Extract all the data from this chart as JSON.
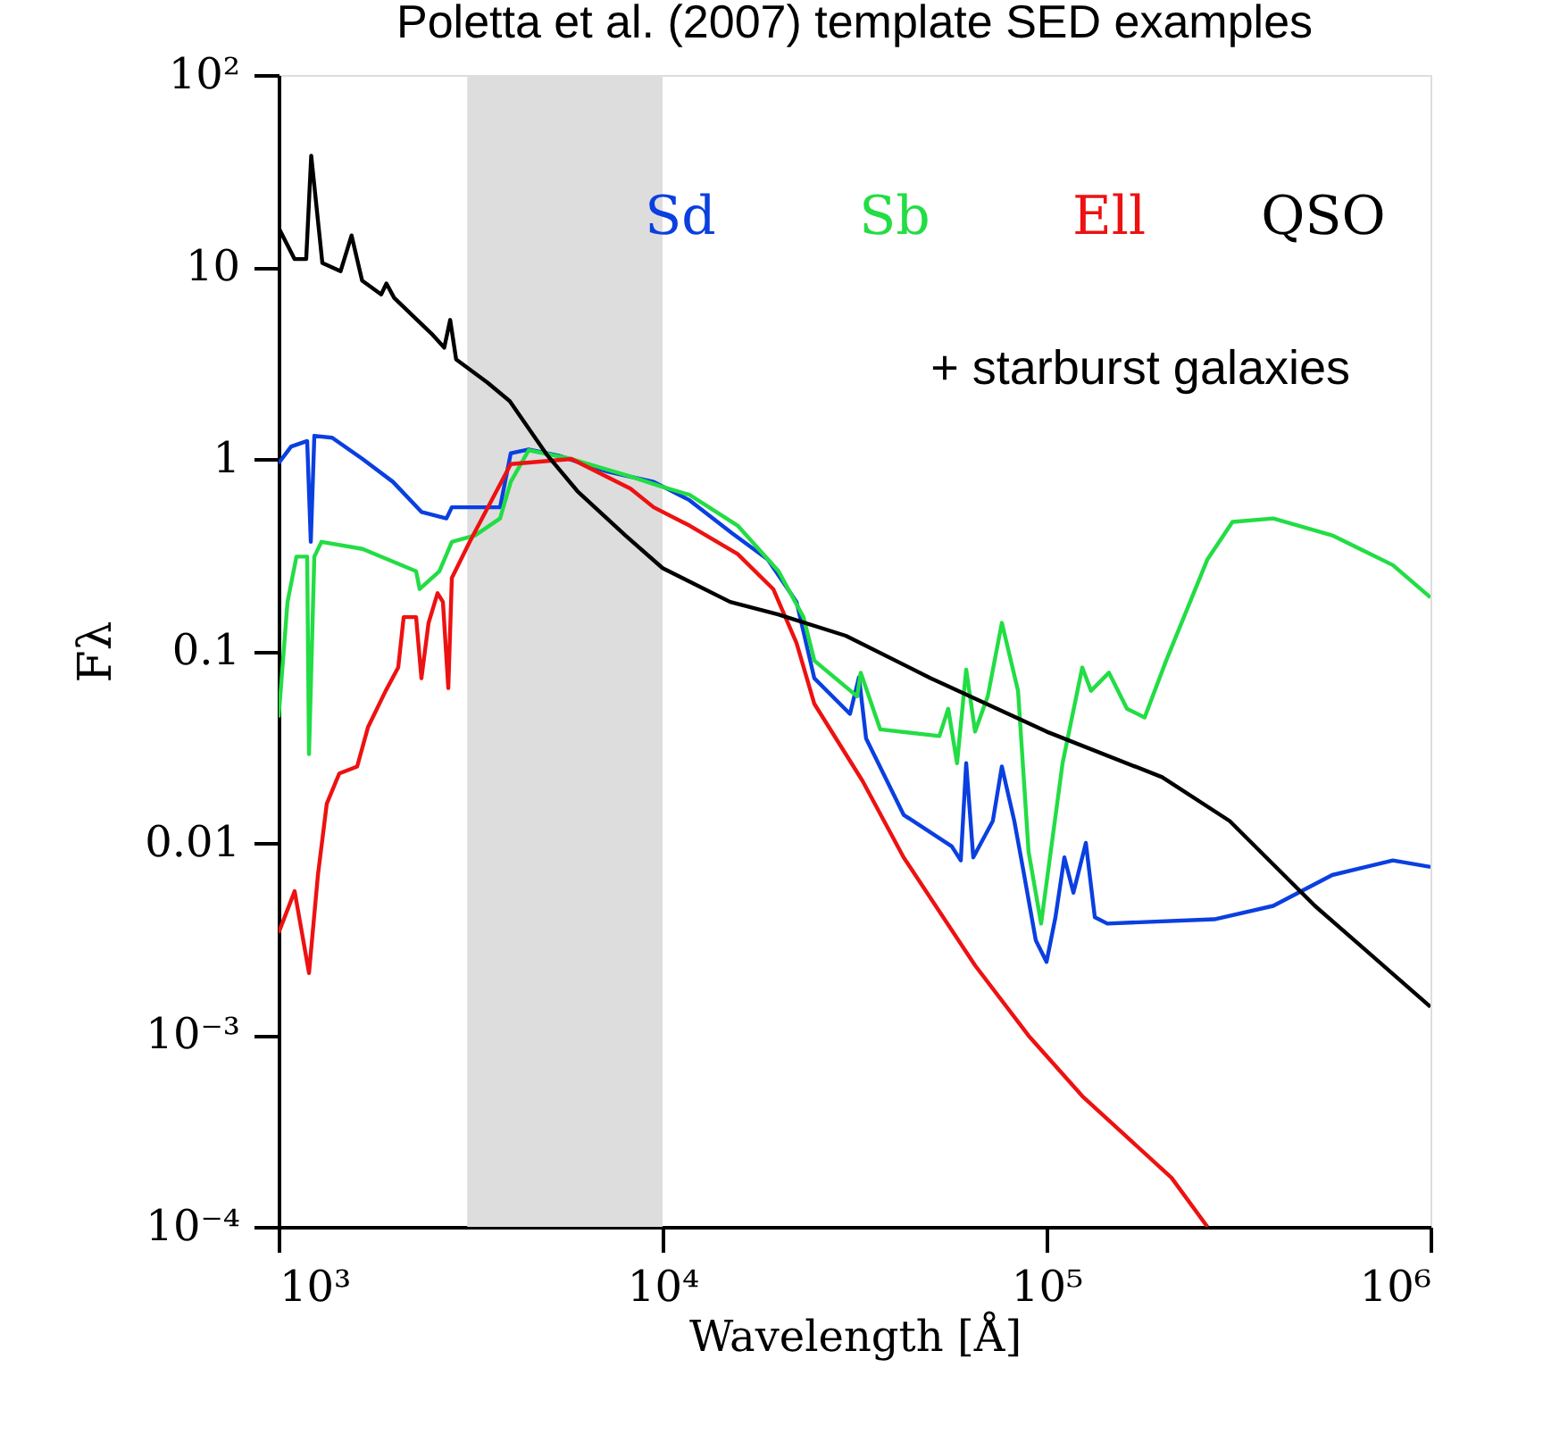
{
  "chart_data": {
    "type": "line",
    "title": "Poletta et al. (2007) template SED examples",
    "xlabel": "Wavelength [Å]",
    "ylabel": "Fλ",
    "log": "xy",
    "grid": false,
    "legend": "top right",
    "marker": "none",
    "line_style": "solid",
    "xlim": [
      1000,
      1000000
    ],
    "ylim": [
      0.0001,
      100
    ],
    "xticks": [
      {
        "value": 1000,
        "label": "10³"
      },
      {
        "value": 10000,
        "label": "10⁴"
      },
      {
        "value": 100000,
        "label": "10⁵"
      },
      {
        "value": 1000000,
        "label": "10⁶"
      }
    ],
    "yticks": [
      {
        "value": 0.0001,
        "label": "10⁻⁴"
      },
      {
        "value": 0.001,
        "label": "10⁻³"
      },
      0.01,
      0.1,
      1,
      10,
      {
        "value": 100,
        "label": "10²"
      }
    ],
    "bands": [
      {
        "axis": "x",
        "from": 3100,
        "to": 10000,
        "color": "#dddddd"
      }
    ],
    "annotations": [
      "+ starburst galaxies"
    ],
    "series": [
      {
        "name": "Sd",
        "color": "#0a3fe0",
        "x": [
          1000,
          1078,
          1187,
          1213,
          1239,
          1379,
          1654,
          1985,
          2355,
          2736,
          2826,
          3774,
          4024,
          4480,
          5370,
          7178,
          9480,
          11750,
          15180,
          18790,
          22330,
          24850,
          30770,
          32480,
          33890,
          42450,
          56650,
          59800,
          61770,
          64450,
          72460,
          76500,
          82440,
          87000,
          93800,
          100000,
          105500,
          111300,
          117500,
          126600,
          133600,
          144000,
          273500,
          389500,
          554600,
          798000,
          1000000
        ],
        "values": [
          0.95,
          1.16,
          1.24,
          0.37,
          1.32,
          1.29,
          1.0,
          0.76,
          0.53,
          0.49,
          0.56,
          0.56,
          1.07,
          1.12,
          1.04,
          0.86,
          0.76,
          0.61,
          0.41,
          0.3,
          0.18,
          0.072,
          0.047,
          0.073,
          0.035,
          0.014,
          0.0096,
          0.0081,
          0.026,
          0.0084,
          0.013,
          0.025,
          0.013,
          0.0072,
          0.0031,
          0.0024,
          0.0041,
          0.0084,
          0.0055,
          0.01,
          0.0041,
          0.0038,
          0.004,
          0.0047,
          0.0068,
          0.0081,
          0.0075
        ]
      },
      {
        "name": "Sb",
        "color": "#22dd44",
        "x": [
          1000,
          1055,
          1113,
          1187,
          1200,
          1239,
          1293,
          1654,
          2281,
          2330,
          2622,
          2826,
          3249,
          3774,
          4024,
          4480,
          5790,
          8250,
          9890,
          11750,
          15680,
          20050,
          23280,
          24850,
          32120,
          32820,
          36900,
          52600,
          55460,
          58480,
          61770,
          65160,
          70300,
          76500,
          84300,
          89800,
          96800,
          110100,
          123900,
          130600,
          145400,
          162000,
          180100,
          204900,
          262500,
          305000,
          389500,
          554600,
          798000,
          1000000
        ],
        "values": [
          0.045,
          0.18,
          0.31,
          0.31,
          0.029,
          0.31,
          0.37,
          0.34,
          0.26,
          0.21,
          0.26,
          0.37,
          0.4,
          0.49,
          0.76,
          1.11,
          1.0,
          0.81,
          0.72,
          0.65,
          0.45,
          0.26,
          0.15,
          0.089,
          0.058,
          0.077,
          0.039,
          0.036,
          0.05,
          0.026,
          0.08,
          0.038,
          0.058,
          0.14,
          0.062,
          0.009,
          0.0038,
          0.026,
          0.082,
          0.062,
          0.077,
          0.05,
          0.045,
          0.089,
          0.3,
          0.47,
          0.49,
          0.4,
          0.28,
          0.19
        ]
      },
      {
        "name": "Ell",
        "color": "#ee1111",
        "x": [
          1000,
          1101,
          1200,
          1266,
          1335,
          1439,
          1602,
          1709,
          1901,
          2049,
          2117,
          2281,
          2355,
          2458,
          2594,
          2679,
          2767,
          2826,
          3146,
          4024,
          5790,
          8250,
          9480,
          11750,
          15680,
          19420,
          22330,
          24850,
          33190,
          42450,
          65160,
          89800,
          123900,
          211700,
          262500
        ],
        "values": [
          0.0034,
          0.0056,
          0.0021,
          0.0068,
          0.016,
          0.023,
          0.025,
          0.04,
          0.062,
          0.082,
          0.15,
          0.15,
          0.072,
          0.14,
          0.2,
          0.18,
          0.064,
          0.24,
          0.37,
          0.94,
          1.0,
          0.7,
          0.56,
          0.45,
          0.32,
          0.21,
          0.11,
          0.053,
          0.021,
          0.0084,
          0.0023,
          0.00099,
          0.00048,
          0.00018,
          0.0001
        ]
      },
      {
        "name": "QSO",
        "color": "#000000",
        "x": [
          1000,
          1100,
          1180,
          1216,
          1300,
          1450,
          1549,
          1650,
          1850,
          1909,
          2000,
          2500,
          2700,
          2798,
          2900,
          3500,
          4000,
          5000,
          6000,
          8000,
          10000,
          15000,
          20000,
          30000,
          50000,
          100000,
          200000,
          300000,
          500000,
          1000000
        ],
        "values": [
          16,
          11,
          11,
          38,
          10.5,
          9.5,
          14.6,
          8.5,
          7.2,
          8.2,
          6.9,
          4.5,
          3.8,
          5.3,
          3.3,
          2.5,
          2.0,
          1.05,
          0.68,
          0.4,
          0.27,
          0.18,
          0.155,
          0.12,
          0.072,
          0.038,
          0.022,
          0.013,
          0.0047,
          0.0014
        ]
      }
    ]
  }
}
